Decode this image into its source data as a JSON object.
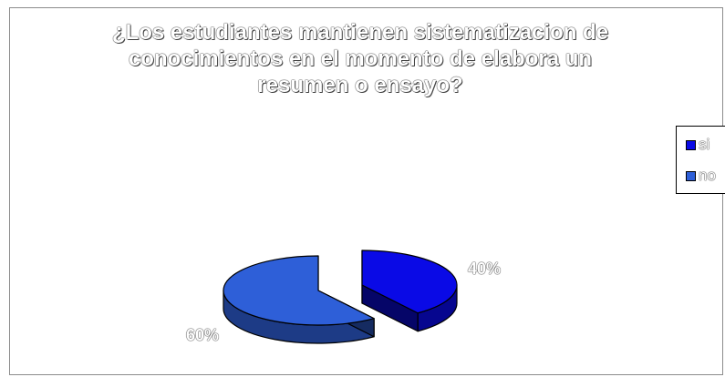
{
  "chart_data": {
    "type": "pie",
    "title": "¿Los estudiantes mantienen sistematizacion de conocimientos en el momento de elabora un resumen o ensayo?",
    "categories": [
      "si",
      "no"
    ],
    "values": [
      40,
      60
    ],
    "labels": [
      "40%",
      "60%"
    ],
    "colors": [
      "#0a0ae6",
      "#2e5fd8"
    ],
    "legend_position": "right"
  }
}
